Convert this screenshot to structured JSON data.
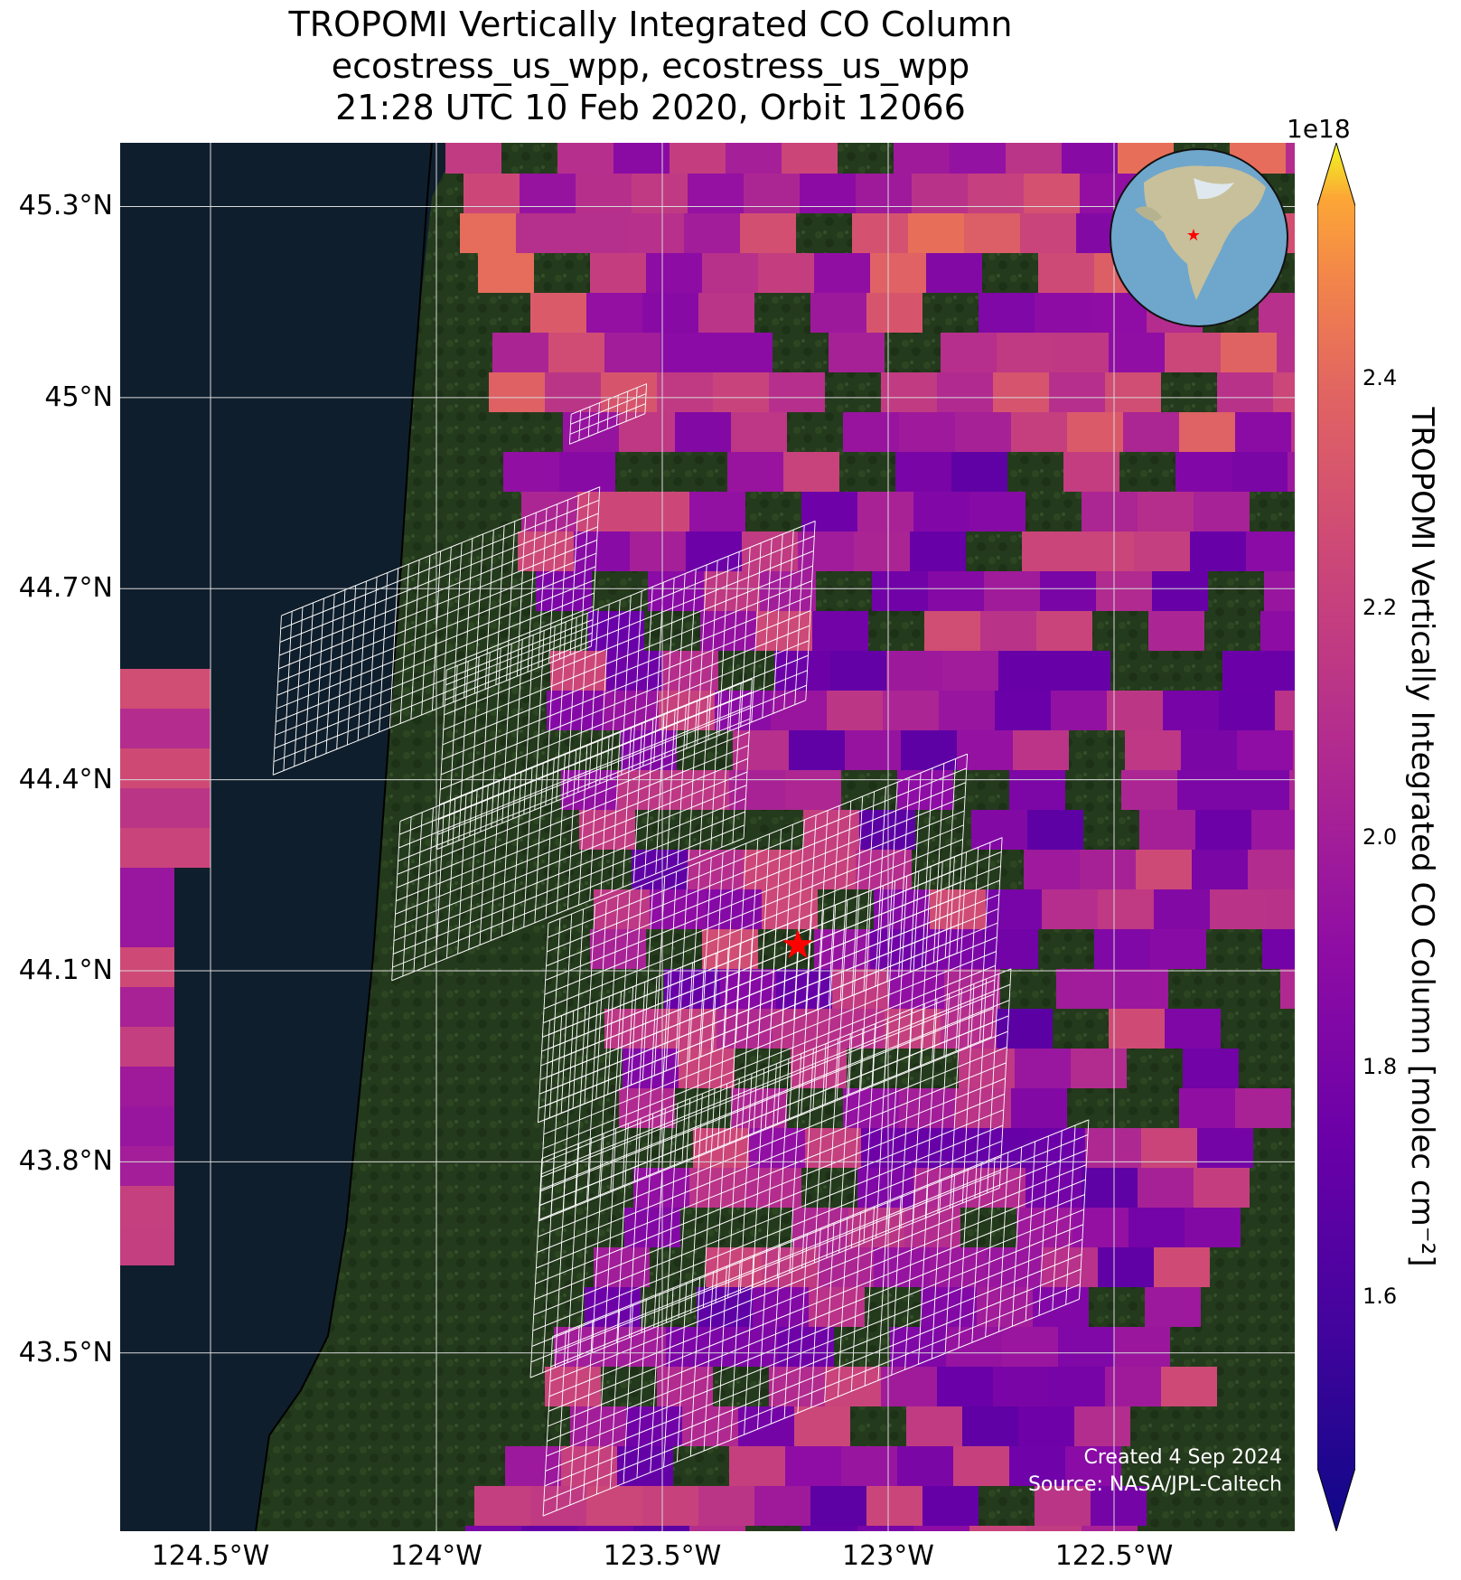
{
  "title": {
    "line1": "TROPOMI Vertically Integrated CO Column",
    "line2": "ecostress_us_wpp, ecostress_us_wpp",
    "line3": "21:28 UTC 10 Feb 2020, Orbit 12066"
  },
  "map": {
    "extent": {
      "lon": [
        -124.7,
        -122.1
      ],
      "lat": [
        43.22,
        45.4
      ]
    },
    "lat_ticks": [
      {
        "value": 45.3,
        "label": "45.3°N"
      },
      {
        "value": 45.0,
        "label": "45°N"
      },
      {
        "value": 44.7,
        "label": "44.7°N"
      },
      {
        "value": 44.4,
        "label": "44.4°N"
      },
      {
        "value": 44.1,
        "label": "44.1°N"
      },
      {
        "value": 43.8,
        "label": "43.8°N"
      },
      {
        "value": 43.5,
        "label": "43.5°N"
      }
    ],
    "lon_ticks": [
      {
        "value": -124.5,
        "label": "124.5°W"
      },
      {
        "value": -124.0,
        "label": "124°W"
      },
      {
        "value": -123.5,
        "label": "123.5°W"
      },
      {
        "value": -123.0,
        "label": "123°W"
      },
      {
        "value": -122.5,
        "label": "122.5°W"
      }
    ],
    "ocean_color": "#0f1e2c",
    "land_color": "#243a1c",
    "gridline_color": "#d9d9d9",
    "site_marker": {
      "lon": -123.2,
      "lat": 44.14,
      "color": "#ff0000",
      "shape": "star"
    },
    "inset_globe": {
      "description_icon": "globe-icon",
      "marker_color": "#ff0000"
    },
    "credit": {
      "line1": "Created 4 Sep 2024",
      "line2": "Source: NASA/JPL-Caltech"
    }
  },
  "colorbar": {
    "colormap": "plasma",
    "exponent_label": "1e18",
    "label": "TROPOMI Vertically Integrated CO Column [molec cm⁻²]",
    "range": [
      1.45,
      2.55
    ],
    "ticks": [
      {
        "value": 1.6,
        "label": "1.6"
      },
      {
        "value": 1.8,
        "label": "1.8"
      },
      {
        "value": 2.0,
        "label": "2.0"
      },
      {
        "value": 2.2,
        "label": "2.2"
      },
      {
        "value": 2.4,
        "label": "2.4"
      }
    ],
    "extend": "both"
  }
}
